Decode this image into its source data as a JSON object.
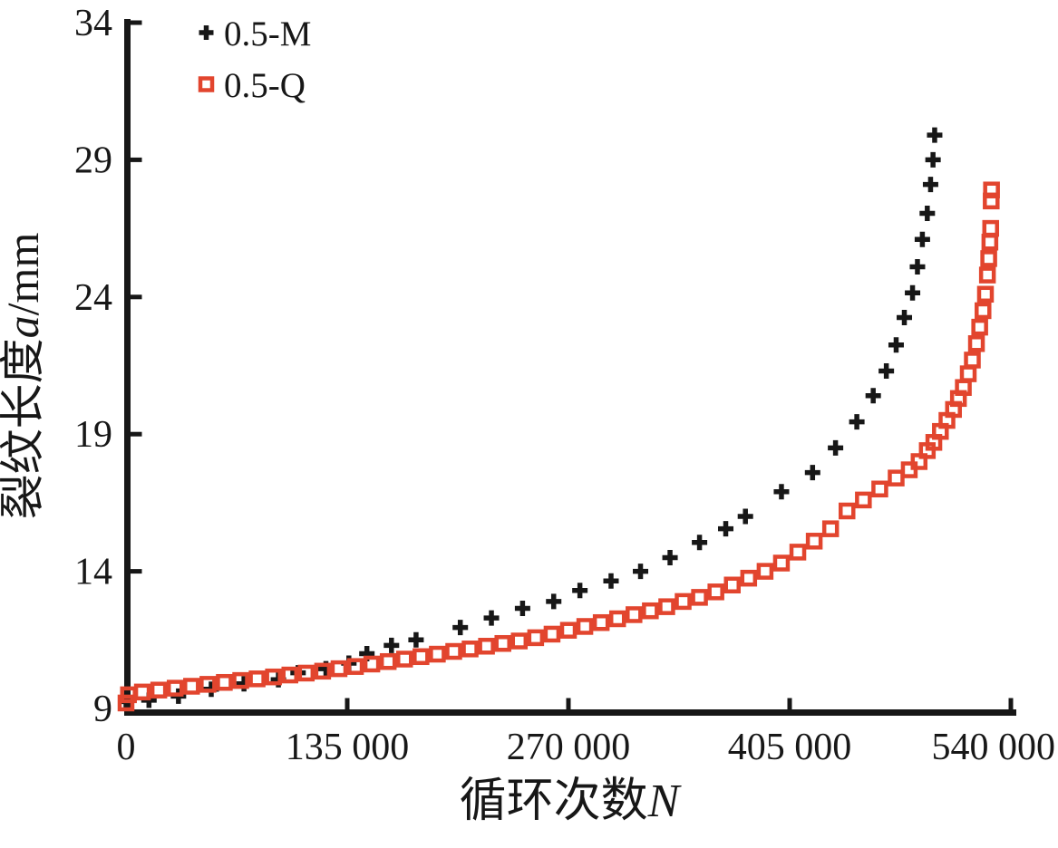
{
  "chart_data": {
    "type": "scatter",
    "title": "",
    "xlabel": {
      "prefix": "循环次数",
      "var": "N"
    },
    "ylabel": {
      "prefix": "裂纹长度",
      "var": "a",
      "suffix": "/mm"
    },
    "xlim": [
      0,
      543000
    ],
    "ylim": [
      9,
      34
    ],
    "grid": false,
    "x_ticks": [
      {
        "value": 0,
        "label": "0"
      },
      {
        "value": 135000,
        "label": "135 000"
      },
      {
        "value": 270000,
        "label": "270 000"
      },
      {
        "value": 405000,
        "label": "405 000"
      },
      {
        "value": 540000,
        "label": "540 000"
      }
    ],
    "y_ticks": [
      {
        "value": 9,
        "label": "9"
      },
      {
        "value": 14,
        "label": "14"
      },
      {
        "value": 19,
        "label": "19"
      },
      {
        "value": 24,
        "label": "24"
      },
      {
        "value": 29,
        "label": "29"
      },
      {
        "value": 34,
        "label": "34"
      }
    ],
    "legend": {
      "position": "top-left-inside"
    },
    "series": [
      {
        "name": "0.5-M",
        "marker": "plus",
        "color": "#171717",
        "points": [
          [
            0,
            9.25
          ],
          [
            14000,
            9.3
          ],
          [
            32000,
            9.45
          ],
          [
            52000,
            9.7
          ],
          [
            72000,
            9.9
          ],
          [
            93000,
            10.05
          ],
          [
            105000,
            10.3
          ],
          [
            122000,
            10.45
          ],
          [
            136000,
            10.65
          ],
          [
            147000,
            11.0
          ],
          [
            162000,
            11.3
          ],
          [
            177000,
            11.5
          ],
          [
            204000,
            11.95
          ],
          [
            223000,
            12.3
          ],
          [
            242000,
            12.65
          ],
          [
            261000,
            12.9
          ],
          [
            277000,
            13.3
          ],
          [
            296000,
            13.65
          ],
          [
            314000,
            14.0
          ],
          [
            332000,
            14.5
          ],
          [
            350000,
            15.05
          ],
          [
            366000,
            15.55
          ],
          [
            378000,
            16.0
          ],
          [
            400000,
            16.9
          ],
          [
            419000,
            17.6
          ],
          [
            433000,
            18.5
          ],
          [
            446000,
            19.45
          ],
          [
            456000,
            20.4
          ],
          [
            464000,
            21.3
          ],
          [
            470000,
            22.25
          ],
          [
            475000,
            23.25
          ],
          [
            480000,
            24.15
          ],
          [
            483000,
            25.1
          ],
          [
            486000,
            26.1
          ],
          [
            489000,
            27.05
          ],
          [
            491000,
            28.1
          ],
          [
            492500,
            29.0
          ],
          [
            493500,
            29.9
          ]
        ]
      },
      {
        "name": "0.5-Q",
        "marker": "open-square",
        "color": "#e2452e",
        "points": [
          [
            0,
            9.2
          ],
          [
            1500,
            9.5
          ],
          [
            10000,
            9.6
          ],
          [
            20000,
            9.67
          ],
          [
            30000,
            9.74
          ],
          [
            40000,
            9.81
          ],
          [
            50000,
            9.88
          ],
          [
            60000,
            9.95
          ],
          [
            70000,
            10.02
          ],
          [
            80000,
            10.08
          ],
          [
            90000,
            10.15
          ],
          [
            100000,
            10.22
          ],
          [
            110000,
            10.29
          ],
          [
            120000,
            10.36
          ],
          [
            130000,
            10.45
          ],
          [
            140000,
            10.53
          ],
          [
            150000,
            10.62
          ],
          [
            160000,
            10.71
          ],
          [
            170000,
            10.8
          ],
          [
            180000,
            10.89
          ],
          [
            190000,
            10.98
          ],
          [
            200000,
            11.08
          ],
          [
            210000,
            11.17
          ],
          [
            220000,
            11.27
          ],
          [
            230000,
            11.37
          ],
          [
            240000,
            11.46
          ],
          [
            250000,
            11.58
          ],
          [
            260000,
            11.71
          ],
          [
            270000,
            11.85
          ],
          [
            280000,
            11.99
          ],
          [
            290000,
            12.13
          ],
          [
            300000,
            12.27
          ],
          [
            310000,
            12.42
          ],
          [
            320000,
            12.56
          ],
          [
            330000,
            12.71
          ],
          [
            340000,
            12.9
          ],
          [
            350000,
            13.05
          ],
          [
            360000,
            13.25
          ],
          [
            370000,
            13.5
          ],
          [
            380000,
            13.75
          ],
          [
            390000,
            14.0
          ],
          [
            400000,
            14.3
          ],
          [
            410000,
            14.7
          ],
          [
            420000,
            15.1
          ],
          [
            430000,
            15.55
          ],
          [
            440000,
            16.2
          ],
          [
            450000,
            16.6
          ],
          [
            460000,
            17.0
          ],
          [
            470000,
            17.4
          ],
          [
            478000,
            17.7
          ],
          [
            484000,
            18.0
          ],
          [
            489000,
            18.4
          ],
          [
            493000,
            18.7
          ],
          [
            497000,
            19.1
          ],
          [
            501000,
            19.5
          ],
          [
            505000,
            19.9
          ],
          [
            508000,
            20.3
          ],
          [
            511000,
            20.7
          ],
          [
            514000,
            21.2
          ],
          [
            516500,
            21.7
          ],
          [
            519000,
            22.3
          ],
          [
            521000,
            22.9
          ],
          [
            523000,
            23.5
          ],
          [
            524500,
            24.1
          ],
          [
            525700,
            24.8
          ],
          [
            526500,
            25.4
          ],
          [
            527200,
            26.0
          ],
          [
            527700,
            26.5
          ],
          [
            528000,
            27.5
          ],
          [
            528200,
            27.9
          ]
        ]
      }
    ],
    "colors": {
      "axis": "#171717",
      "text": "#171717"
    }
  }
}
